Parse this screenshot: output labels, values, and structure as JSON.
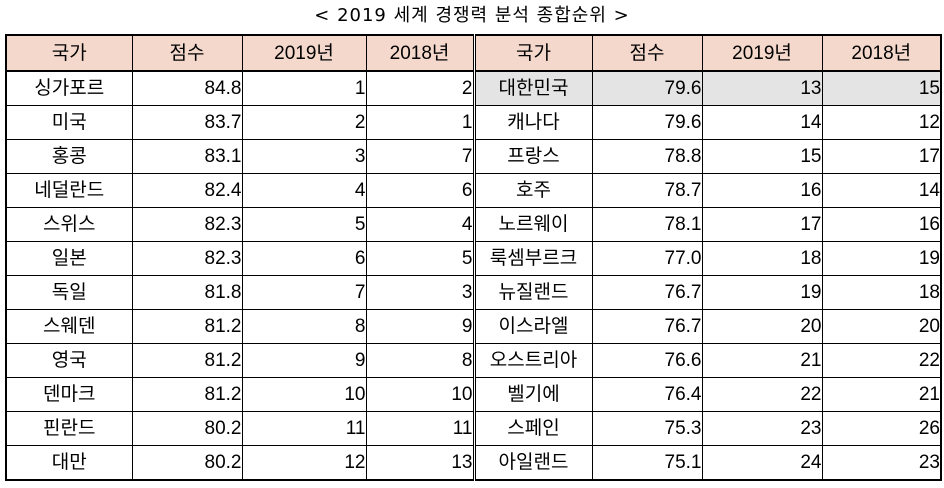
{
  "title": "< 2019 세계 경쟁력 분석 종합순위 >",
  "headers": [
    "국가",
    "점수",
    "2019년",
    "2018년",
    "국가",
    "점수",
    "2019년",
    "2018년"
  ],
  "left_rows": [
    [
      "싱가포르",
      "84.8",
      "1",
      "2"
    ],
    [
      "미국",
      "83.7",
      "2",
      "1"
    ],
    [
      "홍콩",
      "83.1",
      "3",
      "7"
    ],
    [
      "네덜란드",
      "82.4",
      "4",
      "6"
    ],
    [
      "스위스",
      "82.3",
      "5",
      "4"
    ],
    [
      "일본",
      "82.3",
      "6",
      "5"
    ],
    [
      "독일",
      "81.8",
      "7",
      "3"
    ],
    [
      "스웨덴",
      "81.2",
      "8",
      "9"
    ],
    [
      "영국",
      "81.2",
      "9",
      "8"
    ],
    [
      "덴마크",
      "81.2",
      "10",
      "10"
    ],
    [
      "핀란드",
      "80.2",
      "11",
      "11"
    ],
    [
      "대만",
      "80.2",
      "12",
      "13"
    ]
  ],
  "right_rows": [
    [
      "대한민국",
      "79.6",
      "13",
      "15"
    ],
    [
      "캐나다",
      "79.6",
      "14",
      "12"
    ],
    [
      "프랑스",
      "78.8",
      "15",
      "17"
    ],
    [
      "호주",
      "78.7",
      "16",
      "14"
    ],
    [
      "노르웨이",
      "78.1",
      "17",
      "16"
    ],
    [
      "룩셈부르크",
      "77.0",
      "18",
      "19"
    ],
    [
      "뉴질랜드",
      "76.7",
      "19",
      "18"
    ],
    [
      "이스라엘",
      "76.7",
      "20",
      "20"
    ],
    [
      "오스트리아",
      "76.6",
      "21",
      "22"
    ],
    [
      "벨기에",
      "76.4",
      "22",
      "21"
    ],
    [
      "스페인",
      "75.3",
      "23",
      "26"
    ],
    [
      "아일랜드",
      "75.1",
      "24",
      "23"
    ]
  ],
  "colors": {
    "header_bg": "#f5d8cc",
    "highlight_bg": "#e4e4e4"
  }
}
